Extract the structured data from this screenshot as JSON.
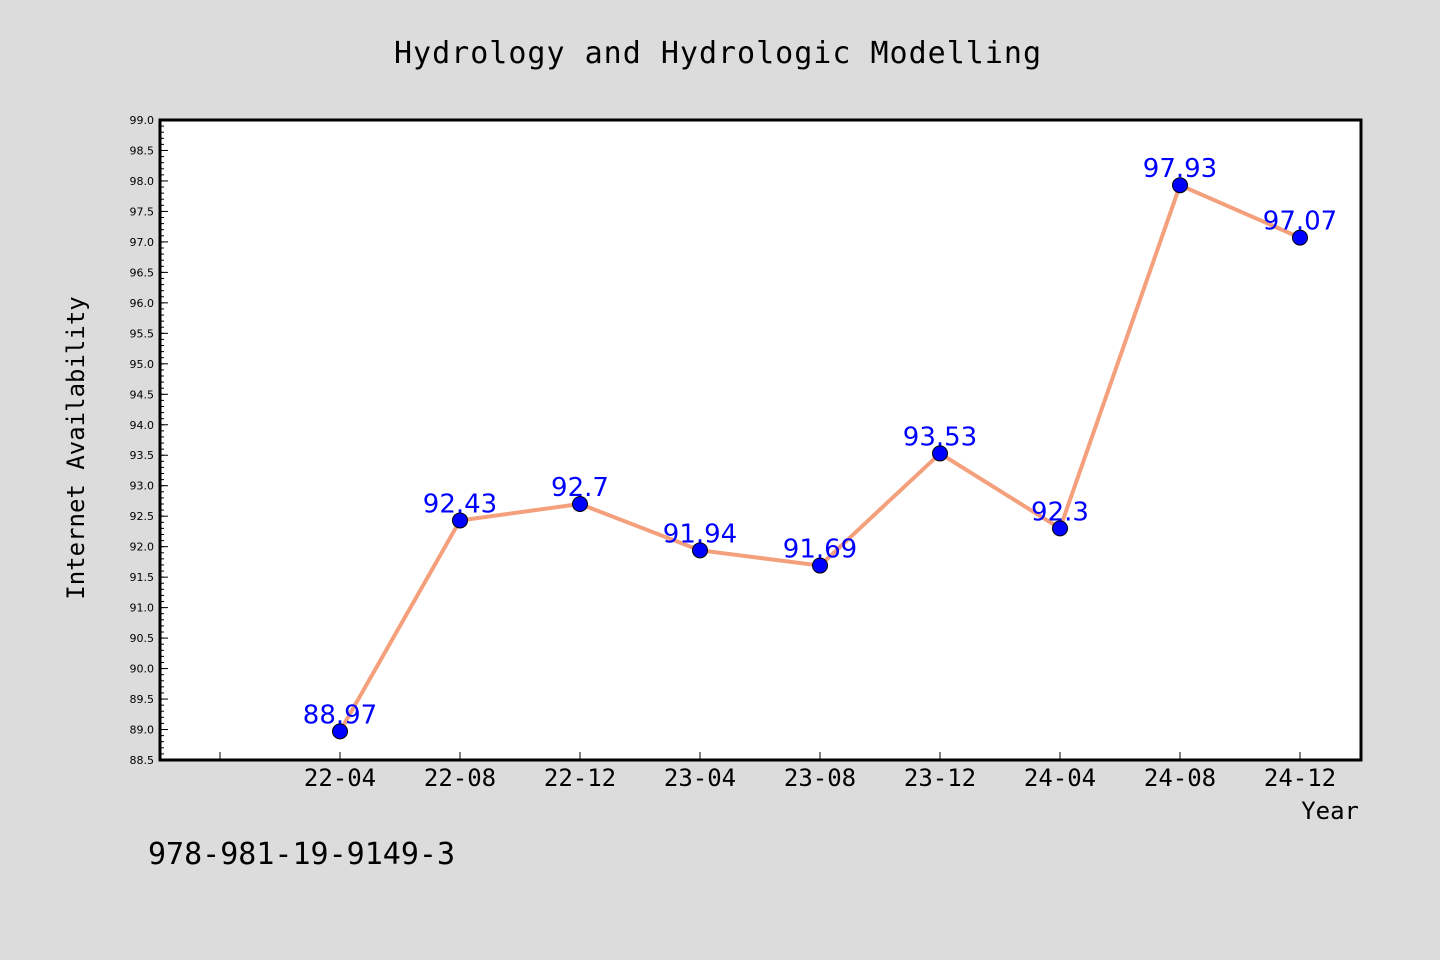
{
  "chart_data": {
    "type": "line",
    "title": "Hydrology and Hydrologic Modelling",
    "xlabel": "Year",
    "ylabel": "Internet Availability",
    "categories": [
      "22-04",
      "22-08",
      "22-12",
      "23-04",
      "23-08",
      "23-12",
      "24-04",
      "24-08",
      "24-12"
    ],
    "series": [
      {
        "values": [
          88.97,
          92.43,
          92.7,
          91.94,
          91.69,
          93.53,
          92.3,
          97.93,
          97.07
        ],
        "data_labels": [
          "88.97",
          "92.43",
          "92.7",
          "91.94",
          "91.69",
          "93.53",
          "92.3",
          "97.93",
          "97.07"
        ],
        "line_color": "#f4a07c",
        "marker_color": "#0000ff"
      }
    ],
    "ylim": [
      88.5,
      99.0
    ],
    "yticks": [
      "88.5",
      "89.0",
      "89.5",
      "90.0",
      "90.5",
      "91.0",
      "91.5",
      "92.0",
      "92.5",
      "93.0",
      "93.5",
      "94.0",
      "94.5",
      "95.0",
      "95.5",
      "96.0",
      "96.5",
      "97.0",
      "97.5",
      "98.0",
      "98.5",
      "99.0"
    ],
    "grid": false,
    "label_color": "#0000ff"
  },
  "footer": {
    "isbn": "978-981-19-9149-3"
  }
}
